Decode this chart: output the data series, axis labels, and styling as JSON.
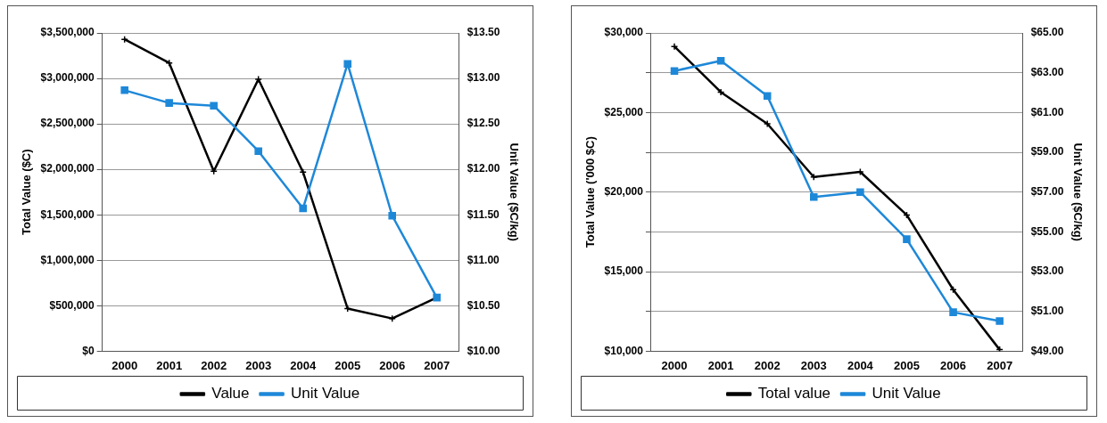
{
  "chart_data": [
    {
      "type": "line",
      "ylabel": "Total Value ($C)",
      "y2label": "Unit Value ($C/kg)",
      "categories": [
        "2000",
        "2001",
        "2002",
        "2003",
        "2004",
        "2005",
        "2006",
        "2007"
      ],
      "series": [
        {
          "name": "Value",
          "color": "#000000",
          "marker": "cross",
          "values": [
            3430000,
            3170000,
            1980000,
            2990000,
            1970000,
            470000,
            360000,
            590000
          ]
        },
        {
          "name": "Unit Value",
          "color": "#1e88d8",
          "marker": "square",
          "axis": "y2",
          "values": [
            12.87,
            12.73,
            12.7,
            12.2,
            11.57,
            13.16,
            11.49,
            10.59
          ]
        }
      ],
      "ylim": [
        0,
        3500000
      ],
      "yticks": [
        {
          "value": 0,
          "label": "$0"
        },
        {
          "value": 500000,
          "label": "$500,000"
        },
        {
          "value": 1000000,
          "label": "$1,000,000"
        },
        {
          "value": 1500000,
          "label": "$1,500,000"
        },
        {
          "value": 2000000,
          "label": "$2,000,000"
        },
        {
          "value": 2500000,
          "label": "$2,500,000"
        },
        {
          "value": 3000000,
          "label": "$3,000,000"
        },
        {
          "value": 3500000,
          "label": "$3,500,000"
        }
      ],
      "y2lim": [
        10,
        13.5
      ],
      "y2ticks": [
        {
          "value": 10,
          "label": "$10.00"
        },
        {
          "value": 10.5,
          "label": "$10.50"
        },
        {
          "value": 11,
          "label": "$11.00"
        },
        {
          "value": 11.5,
          "label": "$11.50"
        },
        {
          "value": 12,
          "label": "$12.00"
        },
        {
          "value": 12.5,
          "label": "$12.50"
        },
        {
          "value": 13,
          "label": "$13.00"
        },
        {
          "value": 13.5,
          "label": "$13.50"
        }
      ],
      "grid": "y",
      "legend": "bottom"
    },
    {
      "type": "line",
      "ylabel": "Total Value ('000 $C)",
      "y2label": "Unit Value ($C/kg)",
      "categories": [
        "2000",
        "2001",
        "2002",
        "2003",
        "2004",
        "2005",
        "2006",
        "2007"
      ],
      "series": [
        {
          "name": "Total value",
          "color": "#000000",
          "marker": "cross",
          "values": [
            29150,
            26280,
            24290,
            20950,
            21270,
            18560,
            13870,
            10100
          ]
        },
        {
          "name": "Unit Value",
          "color": "#1e88d8",
          "marker": "square",
          "axis": "y2",
          "values": [
            63.09,
            63.6,
            61.83,
            56.75,
            57.0,
            54.63,
            50.96,
            50.52
          ]
        }
      ],
      "ylim": [
        10000,
        30000
      ],
      "yticks": [
        {
          "value": 10000,
          "label": "$10,000"
        },
        {
          "value": 12500,
          "label": null
        },
        {
          "value": 15000,
          "label": "$15,000"
        },
        {
          "value": 17500,
          "label": null
        },
        {
          "value": 20000,
          "label": "$20,000"
        },
        {
          "value": 22500,
          "label": null
        },
        {
          "value": 25000,
          "label": "$25,000"
        },
        {
          "value": 27500,
          "label": null
        },
        {
          "value": 30000,
          "label": "$30,000"
        }
      ],
      "y2lim": [
        49,
        65
      ],
      "y2ticks": [
        {
          "value": 49,
          "label": "$49.00"
        },
        {
          "value": 51,
          "label": "$51.00"
        },
        {
          "value": 53,
          "label": "$53.00"
        },
        {
          "value": 55,
          "label": "$55.00"
        },
        {
          "value": 57,
          "label": "$57.00"
        },
        {
          "value": 59,
          "label": "$59.00"
        },
        {
          "value": 61,
          "label": "$61.00"
        },
        {
          "value": 63,
          "label": "$63.00"
        },
        {
          "value": 65,
          "label": "$65.00"
        }
      ],
      "grid": "y",
      "legend": "bottom"
    }
  ]
}
